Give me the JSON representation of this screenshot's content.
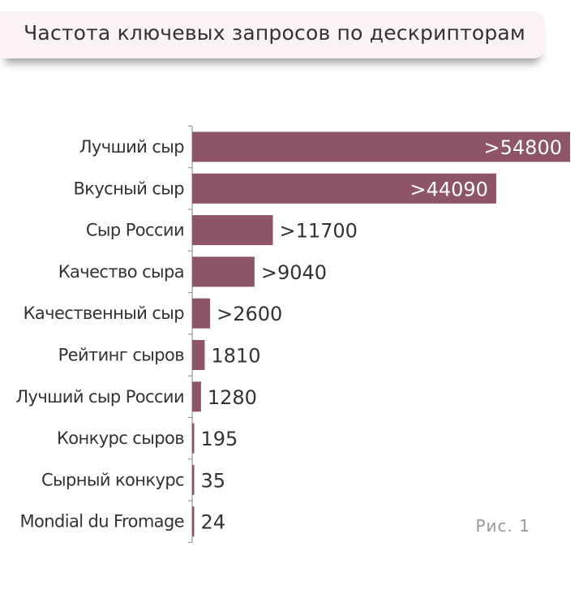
{
  "header": {
    "title": "Частота ключевых запросов по дескрипторам"
  },
  "figure_label": "Рис. 1",
  "colors": {
    "bar": "#8e5566",
    "header_bg": "#fbf3f3",
    "axis": "#999999"
  },
  "chart_data": {
    "type": "bar",
    "orientation": "horizontal",
    "categories": [
      "Лучший сыр",
      "Вкусный сыр",
      "Сыр России",
      "Качество сыра",
      "Качественный сыр",
      "Рейтинг сыров",
      "Лучший сыр России",
      "Конкурс сыров",
      "Сырный конкурс",
      "Mondial du Fromage"
    ],
    "values": [
      54800,
      44090,
      11700,
      9040,
      2600,
      1810,
      1280,
      195,
      35,
      24
    ],
    "value_labels": [
      ">54800",
      ">44090",
      ">11700",
      ">9040",
      ">2600",
      "1810",
      "1280",
      "195",
      "35",
      "24"
    ],
    "label_inside": [
      true,
      true,
      false,
      false,
      false,
      false,
      false,
      false,
      false,
      false
    ],
    "xlim": [
      0,
      54800
    ],
    "grid": false,
    "legend": "none"
  }
}
